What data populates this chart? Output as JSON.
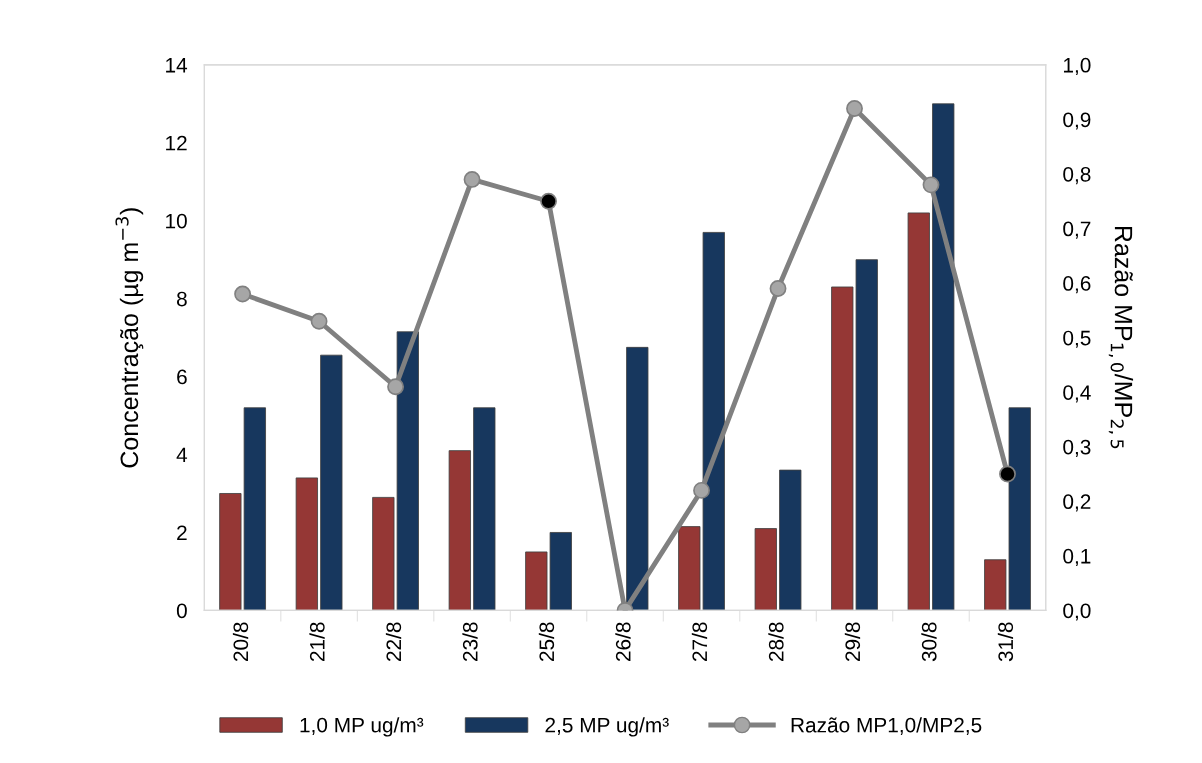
{
  "chart_data": {
    "type": "bar",
    "categories": [
      "20/8",
      "21/8",
      "22/8",
      "23/8",
      "25/8",
      "26/8",
      "27/8",
      "28/8",
      "29/8",
      "30/8",
      "31/8"
    ],
    "ylabel": "Concentração (µg m$^{−3}$)",
    "y2label": "Razão MP$_{1,0}$/MP$_{2,5}$",
    "ylim": [
      0,
      14
    ],
    "yticks": [
      0,
      2,
      4,
      6,
      8,
      10,
      12,
      14
    ],
    "y2lim": [
      0,
      1.0
    ],
    "y2ticks": [
      {
        "value": 0,
        "label": "0,0"
      },
      {
        "value": 0.1,
        "label": "0,1"
      },
      {
        "value": 0.2,
        "label": "0,2"
      },
      {
        "value": 0.3,
        "label": "0,3"
      },
      {
        "value": 0.4,
        "label": "0,4"
      },
      {
        "value": 0.5,
        "label": "0,5"
      },
      {
        "value": 0.6,
        "label": "0,6"
      },
      {
        "value": 0.7,
        "label": "0,7"
      },
      {
        "value": 0.8,
        "label": "0,8"
      },
      {
        "value": 0.9,
        "label": "0,9"
      },
      {
        "value": 1.0,
        "label": "1,0"
      }
    ],
    "grid": false,
    "legend": "bottom",
    "series": [
      {
        "name": "1,0 MP ug/m³",
        "color": "#953735",
        "values": [
          3.0,
          3.4,
          2.9,
          4.1,
          1.5,
          null,
          2.15,
          2.1,
          8.3,
          10.2,
          1.3
        ]
      },
      {
        "name": "2,5 MP ug/m³",
        "color": "#17375e",
        "values": [
          5.2,
          6.55,
          7.15,
          5.2,
          2.0,
          6.75,
          9.7,
          3.6,
          9.0,
          13.0,
          5.2
        ]
      },
      {
        "name": "Razão MP1,0/MP2,5",
        "type": "line",
        "axis": "y2",
        "color": "#808080",
        "marker": "circle",
        "line_style": "solid",
        "colors": [
          "#a6a6a6",
          "#a6a6a6",
          "#a6a6a6",
          "#a6a6a6",
          "#000000",
          "#a6a6a6",
          "#a6a6a6",
          "#a6a6a6",
          "#a6a6a6",
          "#a6a6a6",
          "#000000"
        ],
        "values": [
          0.58,
          0.53,
          0.41,
          0.79,
          0.75,
          0.0,
          0.22,
          0.59,
          0.92,
          0.78,
          0.25
        ]
      }
    ]
  }
}
